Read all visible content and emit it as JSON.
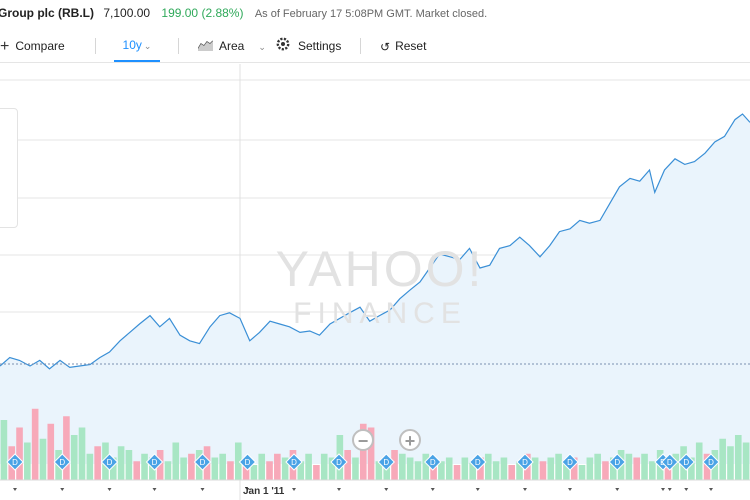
{
  "header": {
    "title": "Group plc (RB.L)",
    "price": "7,100.00",
    "change": "199.00 (2.88%)",
    "as_of": "As of February 17 5:08PM GMT. Market closed."
  },
  "toolbar": {
    "compare_label": "Compare",
    "range_label": "10y",
    "chart_type_label": "Area",
    "settings_label": "Settings",
    "reset_label": "Reset"
  },
  "watermark": {
    "line1": "YAHOO!",
    "line2": "FINANCE"
  },
  "zoom": {
    "out_symbol": "−",
    "in_symbol": "+"
  },
  "dividend_marker": "D",
  "colors": {
    "line": "#3a8fd6",
    "area": "#eaf4fc",
    "volume_up": "#a8e6c4",
    "volume_down": "#f7a9b9",
    "dividend": "#4aa3e6",
    "positive": "#2fa95a"
  },
  "chart_data": {
    "type": "area",
    "x_tick_labels": [
      "Jan 1 '11"
    ],
    "price_series": [
      {
        "x": 0,
        "y": 0.1
      },
      {
        "x": 0.013,
        "y": 0.13
      },
      {
        "x": 0.026,
        "y": 0.12
      },
      {
        "x": 0.04,
        "y": 0.1
      },
      {
        "x": 0.053,
        "y": 0.12
      },
      {
        "x": 0.066,
        "y": 0.09
      },
      {
        "x": 0.08,
        "y": 0.12
      },
      {
        "x": 0.093,
        "y": 0.095
      },
      {
        "x": 0.106,
        "y": 0.1
      },
      {
        "x": 0.12,
        "y": 0.105
      },
      {
        "x": 0.133,
        "y": 0.13
      },
      {
        "x": 0.146,
        "y": 0.15
      },
      {
        "x": 0.16,
        "y": 0.19
      },
      {
        "x": 0.173,
        "y": 0.22
      },
      {
        "x": 0.186,
        "y": 0.25
      },
      {
        "x": 0.2,
        "y": 0.28
      },
      {
        "x": 0.213,
        "y": 0.24
      },
      {
        "x": 0.226,
        "y": 0.27
      },
      {
        "x": 0.24,
        "y": 0.21
      },
      {
        "x": 0.253,
        "y": 0.19
      },
      {
        "x": 0.266,
        "y": 0.18
      },
      {
        "x": 0.28,
        "y": 0.24
      },
      {
        "x": 0.293,
        "y": 0.28
      },
      {
        "x": 0.306,
        "y": 0.29
      },
      {
        "x": 0.32,
        "y": 0.27
      },
      {
        "x": 0.333,
        "y": 0.19
      },
      {
        "x": 0.346,
        "y": 0.22
      },
      {
        "x": 0.36,
        "y": 0.26
      },
      {
        "x": 0.373,
        "y": 0.25
      },
      {
        "x": 0.386,
        "y": 0.24
      },
      {
        "x": 0.4,
        "y": 0.22
      },
      {
        "x": 0.413,
        "y": 0.225
      },
      {
        "x": 0.426,
        "y": 0.21
      },
      {
        "x": 0.44,
        "y": 0.25
      },
      {
        "x": 0.453,
        "y": 0.27
      },
      {
        "x": 0.466,
        "y": 0.29
      },
      {
        "x": 0.48,
        "y": 0.31
      },
      {
        "x": 0.493,
        "y": 0.26
      },
      {
        "x": 0.506,
        "y": 0.28
      },
      {
        "x": 0.52,
        "y": 0.3
      },
      {
        "x": 0.533,
        "y": 0.34
      },
      {
        "x": 0.546,
        "y": 0.37
      },
      {
        "x": 0.56,
        "y": 0.4
      },
      {
        "x": 0.573,
        "y": 0.45
      },
      {
        "x": 0.586,
        "y": 0.5
      },
      {
        "x": 0.6,
        "y": 0.49
      },
      {
        "x": 0.613,
        "y": 0.48
      },
      {
        "x": 0.626,
        "y": 0.52
      },
      {
        "x": 0.64,
        "y": 0.45
      },
      {
        "x": 0.653,
        "y": 0.46
      },
      {
        "x": 0.666,
        "y": 0.52
      },
      {
        "x": 0.68,
        "y": 0.53
      },
      {
        "x": 0.693,
        "y": 0.56
      },
      {
        "x": 0.706,
        "y": 0.53
      },
      {
        "x": 0.72,
        "y": 0.49
      },
      {
        "x": 0.733,
        "y": 0.53
      },
      {
        "x": 0.746,
        "y": 0.58
      },
      {
        "x": 0.76,
        "y": 0.59
      },
      {
        "x": 0.773,
        "y": 0.62
      },
      {
        "x": 0.786,
        "y": 0.61
      },
      {
        "x": 0.8,
        "y": 0.62
      },
      {
        "x": 0.813,
        "y": 0.68
      },
      {
        "x": 0.826,
        "y": 0.74
      },
      {
        "x": 0.84,
        "y": 0.77
      },
      {
        "x": 0.853,
        "y": 0.76
      },
      {
        "x": 0.866,
        "y": 0.8
      },
      {
        "x": 0.873,
        "y": 0.72
      },
      {
        "x": 0.886,
        "y": 0.8
      },
      {
        "x": 0.9,
        "y": 0.84
      },
      {
        "x": 0.913,
        "y": 0.82
      },
      {
        "x": 0.926,
        "y": 0.83
      },
      {
        "x": 0.94,
        "y": 0.86
      },
      {
        "x": 0.953,
        "y": 0.9
      },
      {
        "x": 0.966,
        "y": 0.92
      },
      {
        "x": 0.98,
        "y": 0.98
      },
      {
        "x": 0.99,
        "y": 1.0
      },
      {
        "x": 1.0,
        "y": 0.97
      }
    ],
    "volume_bars": [
      {
        "v": 0.8,
        "up": true
      },
      {
        "v": 0.45,
        "up": false
      },
      {
        "v": 0.7,
        "up": false
      },
      {
        "v": 0.5,
        "up": true
      },
      {
        "v": 0.95,
        "up": false
      },
      {
        "v": 0.55,
        "up": true
      },
      {
        "v": 0.75,
        "up": false
      },
      {
        "v": 0.4,
        "up": true
      },
      {
        "v": 0.85,
        "up": false
      },
      {
        "v": 0.6,
        "up": true
      },
      {
        "v": 0.7,
        "up": true
      },
      {
        "v": 0.35,
        "up": true
      },
      {
        "v": 0.45,
        "up": false
      },
      {
        "v": 0.5,
        "up": true
      },
      {
        "v": 0.3,
        "up": true
      },
      {
        "v": 0.45,
        "up": true
      },
      {
        "v": 0.4,
        "up": true
      },
      {
        "v": 0.25,
        "up": false
      },
      {
        "v": 0.35,
        "up": true
      },
      {
        "v": 0.3,
        "up": true
      },
      {
        "v": 0.4,
        "up": false
      },
      {
        "v": 0.25,
        "up": true
      },
      {
        "v": 0.5,
        "up": true
      },
      {
        "v": 0.3,
        "up": true
      },
      {
        "v": 0.35,
        "up": false
      },
      {
        "v": 0.4,
        "up": true
      },
      {
        "v": 0.45,
        "up": false
      },
      {
        "v": 0.3,
        "up": true
      },
      {
        "v": 0.35,
        "up": true
      },
      {
        "v": 0.25,
        "up": false
      },
      {
        "v": 0.5,
        "up": true
      },
      {
        "v": 0.3,
        "up": false
      },
      {
        "v": 0.2,
        "up": true
      },
      {
        "v": 0.35,
        "up": true
      },
      {
        "v": 0.25,
        "up": false
      },
      {
        "v": 0.35,
        "up": false
      },
      {
        "v": 0.3,
        "up": true
      },
      {
        "v": 0.4,
        "up": false
      },
      {
        "v": 0.25,
        "up": true
      },
      {
        "v": 0.35,
        "up": true
      },
      {
        "v": 0.2,
        "up": false
      },
      {
        "v": 0.35,
        "up": true
      },
      {
        "v": 0.3,
        "up": true
      },
      {
        "v": 0.6,
        "up": true
      },
      {
        "v": 0.4,
        "up": false
      },
      {
        "v": 0.3,
        "up": true
      },
      {
        "v": 0.75,
        "up": false
      },
      {
        "v": 0.7,
        "up": false
      },
      {
        "v": 0.25,
        "up": true
      },
      {
        "v": 0.3,
        "up": true
      },
      {
        "v": 0.4,
        "up": false
      },
      {
        "v": 0.35,
        "up": true
      },
      {
        "v": 0.3,
        "up": true
      },
      {
        "v": 0.25,
        "up": true
      },
      {
        "v": 0.35,
        "up": true
      },
      {
        "v": 0.3,
        "up": false
      },
      {
        "v": 0.25,
        "up": true
      },
      {
        "v": 0.3,
        "up": true
      },
      {
        "v": 0.2,
        "up": false
      },
      {
        "v": 0.3,
        "up": true
      },
      {
        "v": 0.25,
        "up": true
      },
      {
        "v": 0.3,
        "up": false
      },
      {
        "v": 0.35,
        "up": true
      },
      {
        "v": 0.25,
        "up": true
      },
      {
        "v": 0.3,
        "up": true
      },
      {
        "v": 0.2,
        "up": false
      },
      {
        "v": 0.25,
        "up": true
      },
      {
        "v": 0.35,
        "up": false
      },
      {
        "v": 0.3,
        "up": true
      },
      {
        "v": 0.25,
        "up": false
      },
      {
        "v": 0.3,
        "up": true
      },
      {
        "v": 0.35,
        "up": true
      },
      {
        "v": 0.25,
        "up": true
      },
      {
        "v": 0.3,
        "up": false
      },
      {
        "v": 0.2,
        "up": true
      },
      {
        "v": 0.3,
        "up": true
      },
      {
        "v": 0.35,
        "up": true
      },
      {
        "v": 0.25,
        "up": false
      },
      {
        "v": 0.3,
        "up": true
      },
      {
        "v": 0.4,
        "up": true
      },
      {
        "v": 0.35,
        "up": true
      },
      {
        "v": 0.3,
        "up": false
      },
      {
        "v": 0.35,
        "up": true
      },
      {
        "v": 0.25,
        "up": true
      },
      {
        "v": 0.4,
        "up": true
      },
      {
        "v": 0.3,
        "up": false
      },
      {
        "v": 0.35,
        "up": true
      },
      {
        "v": 0.45,
        "up": true
      },
      {
        "v": 0.3,
        "up": true
      },
      {
        "v": 0.5,
        "up": true
      },
      {
        "v": 0.35,
        "up": false
      },
      {
        "v": 0.4,
        "up": true
      },
      {
        "v": 0.55,
        "up": true
      },
      {
        "v": 0.45,
        "up": true
      },
      {
        "v": 0.6,
        "up": true
      },
      {
        "v": 0.5,
        "up": true
      }
    ],
    "dividend_x": [
      0.02,
      0.083,
      0.146,
      0.206,
      0.27,
      0.33,
      0.392,
      0.452,
      0.515,
      0.577,
      0.637,
      0.7,
      0.76,
      0.823,
      0.884,
      0.893,
      0.915,
      0.948
    ],
    "jan_2011_x": 0.32,
    "previous_close_y": 0.1
  }
}
